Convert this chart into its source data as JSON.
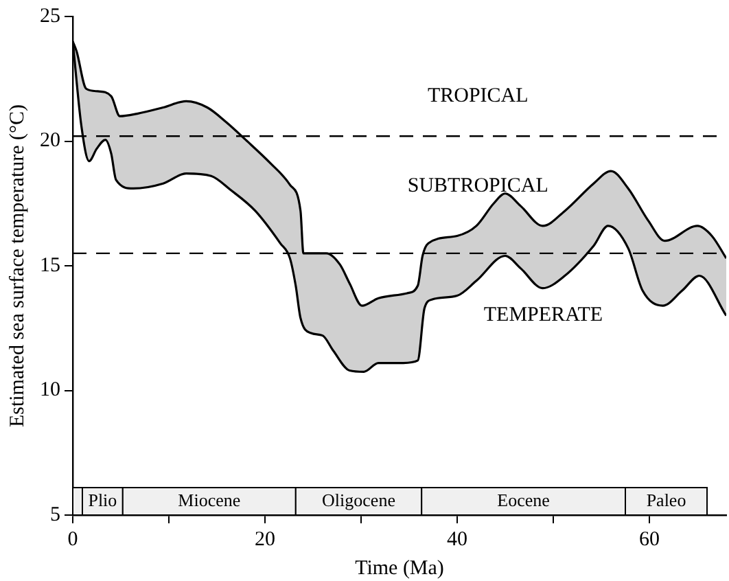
{
  "chart_data": {
    "type": "line",
    "xlabel": "Time (Ma)",
    "ylabel": "Estimated sea surface temperature (°C)",
    "xlim": [
      0,
      68
    ],
    "ylim": [
      5,
      25
    ],
    "xticks": [
      0,
      {
        "value": 10,
        "label": null
      },
      20,
      {
        "value": 30,
        "label": null
      },
      40,
      {
        "value": 50,
        "label": null
      },
      60
    ],
    "yticks": [
      5,
      10,
      15,
      20,
      25
    ],
    "grid": false,
    "legend": false,
    "series": [
      {
        "color": "#000000",
        "x": [
          0,
          0.4,
          1.4,
          2.6,
          4,
          4.9,
          6.7,
          9.4,
          11.8,
          14,
          16,
          18,
          20.6,
          22.6,
          23.7,
          24,
          26.4,
          27.8,
          28.8,
          30.1,
          31.8,
          34.8,
          35.9,
          36.4,
          37,
          40,
          42,
          43.8,
          45,
          46.6,
          48.9,
          51.2,
          54.2,
          56,
          57.8,
          59.9,
          61.6,
          65,
          66.5,
          68
        ],
        "values": [
          24,
          23.6,
          22.1,
          22,
          21.8,
          21,
          21.1,
          21.35,
          21.6,
          21.35,
          20.75,
          20.05,
          19.1,
          18.25,
          17.2,
          15.5,
          15.5,
          15.05,
          14.3,
          13.4,
          13.7,
          13.9,
          14.2,
          15.4,
          15.9,
          16.2,
          16.6,
          17.5,
          17.9,
          17.4,
          16.6,
          17.2,
          18.3,
          18.8,
          18.1,
          16.8,
          16,
          16.6,
          16.2,
          15.3
        ]
      },
      {
        "color": "#000000",
        "x": [
          0,
          0.9,
          1.7,
          2.5,
          3.4,
          4,
          4.5,
          6.3,
          9.4,
          11.8,
          14.4,
          16.4,
          19,
          21.6,
          22.6,
          23.2,
          23.7,
          24.8,
          26,
          27.1,
          28.8,
          30.3,
          31.8,
          34.4,
          35.9,
          36.6,
          37.4,
          40,
          42,
          45,
          46.6,
          48.9,
          51.2,
          54.2,
          55.7,
          57.8,
          59.3,
          61.4,
          63.4,
          65.2,
          68
        ],
        "values": [
          24,
          20.6,
          19.2,
          19.7,
          20.05,
          19.5,
          18.45,
          18.1,
          18.3,
          18.7,
          18.6,
          18.05,
          17.2,
          15.9,
          15.3,
          14.2,
          12.9,
          12.3,
          12.2,
          11.6,
          10.8,
          10.75,
          11.1,
          11.1,
          11.2,
          13.3,
          13.65,
          13.8,
          14.4,
          15.4,
          14.9,
          14.1,
          14.6,
          15.8,
          16.6,
          15.7,
          14,
          13.4,
          14,
          14.6,
          13
        ]
      }
    ],
    "ref_lines": [
      {
        "axis": "y",
        "value": 20.2,
        "line_style": "dashed"
      },
      {
        "axis": "y",
        "value": 15.5,
        "line_style": "dashed"
      }
    ],
    "bands": [
      {
        "axis": "x",
        "from": 0,
        "to": 1,
        "color": "#f0f0f0"
      },
      {
        "axis": "x",
        "from": 1,
        "to": 5.2,
        "label": "Plio",
        "color": "#f0f0f0"
      },
      {
        "axis": "x",
        "from": 5.2,
        "to": 23.2,
        "label": "Miocene",
        "color": "#f0f0f0"
      },
      {
        "axis": "x",
        "from": 23.2,
        "to": 36.3,
        "label": "Oligocene",
        "color": "#f0f0f0"
      },
      {
        "axis": "x",
        "from": 36.3,
        "to": 57.5,
        "label": "Eocene",
        "color": "#f0f0f0"
      },
      {
        "axis": "x",
        "from": 57.5,
        "to": 66,
        "label": "Paleo",
        "color": "#f0f0f0"
      }
    ],
    "annotations": [
      "TROPICAL",
      "SUBTROPICAL",
      "TEMPERATE"
    ]
  }
}
